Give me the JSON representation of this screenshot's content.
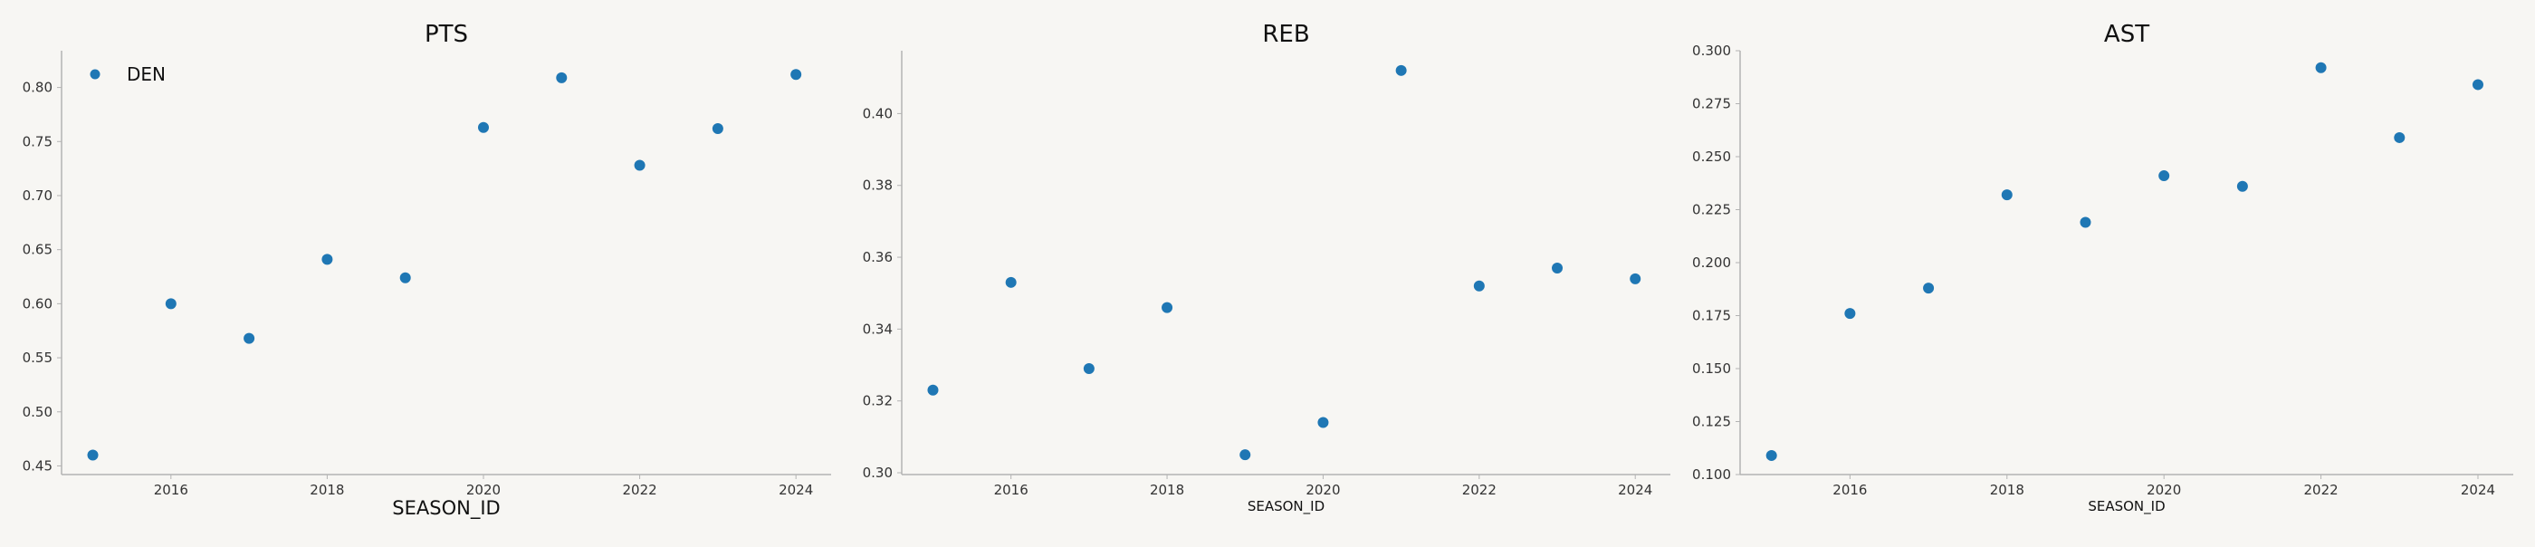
{
  "chart_data": [
    {
      "type": "scatter",
      "title": "PTS",
      "xlabel": "SEASON_ID",
      "ylabel": "",
      "x": [
        2015,
        2016,
        2017,
        2018,
        2019,
        2020,
        2021,
        2022,
        2023,
        2024
      ],
      "xlim": [
        2014.6,
        2024.45
      ],
      "ylim": [
        0.442,
        0.834
      ],
      "xticks": [
        "2016",
        "2018",
        "2020",
        "2022",
        "2024"
      ],
      "yticks": [
        "0.45",
        "0.50",
        "0.55",
        "0.60",
        "0.65",
        "0.70",
        "0.75",
        "0.80"
      ],
      "series": [
        {
          "name": "DEN",
          "color": "#1f77b4",
          "values": [
            0.46,
            0.6,
            0.568,
            0.641,
            0.624,
            0.763,
            0.809,
            0.728,
            0.762,
            0.812
          ]
        }
      ],
      "legend": {
        "position": "top-left"
      },
      "grid": false
    },
    {
      "type": "scatter",
      "title": "REB",
      "xlabel": "SEASON_ID",
      "ylabel": "",
      "x": [
        2015,
        2016,
        2017,
        2018,
        2019,
        2020,
        2021,
        2022,
        2023,
        2024
      ],
      "xlim": [
        2014.6,
        2024.45
      ],
      "ylim": [
        0.2995,
        0.4175
      ],
      "xticks": [
        "2016",
        "2018",
        "2020",
        "2022",
        "2024"
      ],
      "yticks": [
        "0.30",
        "0.32",
        "0.34",
        "0.36",
        "0.38",
        "0.40"
      ],
      "series": [
        {
          "name": "",
          "color": "#1f77b4",
          "values": [
            0.323,
            0.353,
            0.329,
            0.346,
            0.305,
            0.314,
            0.412,
            0.352,
            0.357,
            0.354
          ]
        }
      ],
      "grid": false
    },
    {
      "type": "scatter",
      "title": "AST",
      "xlabel": "SEASON_ID",
      "ylabel": "",
      "x": [
        2015,
        2016,
        2017,
        2018,
        2019,
        2020,
        2021,
        2022,
        2023,
        2024
      ],
      "xlim": [
        2014.6,
        2024.45
      ],
      "ylim": [
        0.1,
        0.3
      ],
      "xticks": [
        "2016",
        "2018",
        "2020",
        "2022",
        "2024"
      ],
      "yticks": [
        "0.100",
        "0.125",
        "0.150",
        "0.175",
        "0.200",
        "0.225",
        "0.250",
        "0.275",
        "0.300"
      ],
      "series": [
        {
          "name": "",
          "color": "#1f77b4",
          "values": [
            0.109,
            0.176,
            0.188,
            0.232,
            0.219,
            0.241,
            0.236,
            0.292,
            0.259,
            0.284
          ]
        }
      ],
      "grid": false
    }
  ]
}
